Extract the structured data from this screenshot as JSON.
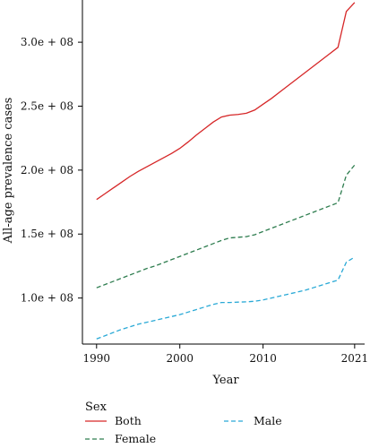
{
  "chart_data": {
    "type": "line",
    "title": "",
    "xlabel": "Year",
    "ylabel": "All-age prevalence cases",
    "xlim": [
      1988.3,
      2022.2
    ],
    "ylim": [
      64000000,
      333000000
    ],
    "xticks": [
      1990,
      2000,
      2010,
      2021
    ],
    "xtick_labels": [
      "1990",
      "2000",
      "2010",
      "2021"
    ],
    "yticks": [
      100000000,
      150000000,
      200000000,
      250000000,
      300000000
    ],
    "ytick_labels": [
      "1.0e + 08",
      "1.5e + 08",
      "2.0e + 08",
      "2.5e + 08",
      "3.0e + 08"
    ],
    "grid": false,
    "legend": {
      "title": "Sex",
      "position": "bottom"
    },
    "x": [
      1990,
      1991,
      1992,
      1993,
      1994,
      1995,
      1996,
      1997,
      1998,
      1999,
      2000,
      2001,
      2002,
      2003,
      2004,
      2005,
      2006,
      2007,
      2008,
      2009,
      2010,
      2011,
      2012,
      2013,
      2014,
      2015,
      2016,
      2017,
      2018,
      2019,
      2020,
      2021
    ],
    "series": [
      {
        "name": "Both",
        "color": "#d62728",
        "dash": "solid",
        "values": [
          177000000,
          181500000,
          186000000,
          190500000,
          195000000,
          199000000,
          202500000,
          206000000,
          209500000,
          213000000,
          217000000,
          222000000,
          227500000,
          232500000,
          237500000,
          241500000,
          243000000,
          243500000,
          244500000,
          247000000,
          251500000,
          256000000,
          261000000,
          266000000,
          271000000,
          276000000,
          281000000,
          286000000,
          291000000,
          296000000,
          324000000,
          331000000
        ]
      },
      {
        "name": "Female",
        "color": "#2e7d4f",
        "dash": "dashed",
        "values": [
          108000000,
          110500000,
          113000000,
          115500000,
          118000000,
          120500000,
          123000000,
          125000000,
          127500000,
          130000000,
          132500000,
          135000000,
          137500000,
          140000000,
          142500000,
          145000000,
          147000000,
          147500000,
          148000000,
          149500000,
          152000000,
          154500000,
          157000000,
          159500000,
          162000000,
          164500000,
          167000000,
          169500000,
          172000000,
          174500000,
          196000000,
          204000000
        ]
      },
      {
        "name": "Male",
        "color": "#29a9d6",
        "dash": "dashed",
        "values": [
          68000000,
          70500000,
          73000000,
          75500000,
          77500000,
          79500000,
          81000000,
          82500000,
          84000000,
          85500000,
          87000000,
          89000000,
          91000000,
          93000000,
          95000000,
          96500000,
          96500000,
          96800000,
          97000000,
          97500000,
          98500000,
          100000000,
          101500000,
          103000000,
          104500000,
          106000000,
          108000000,
          110000000,
          112000000,
          114000000,
          128000000,
          132000000
        ]
      }
    ]
  }
}
